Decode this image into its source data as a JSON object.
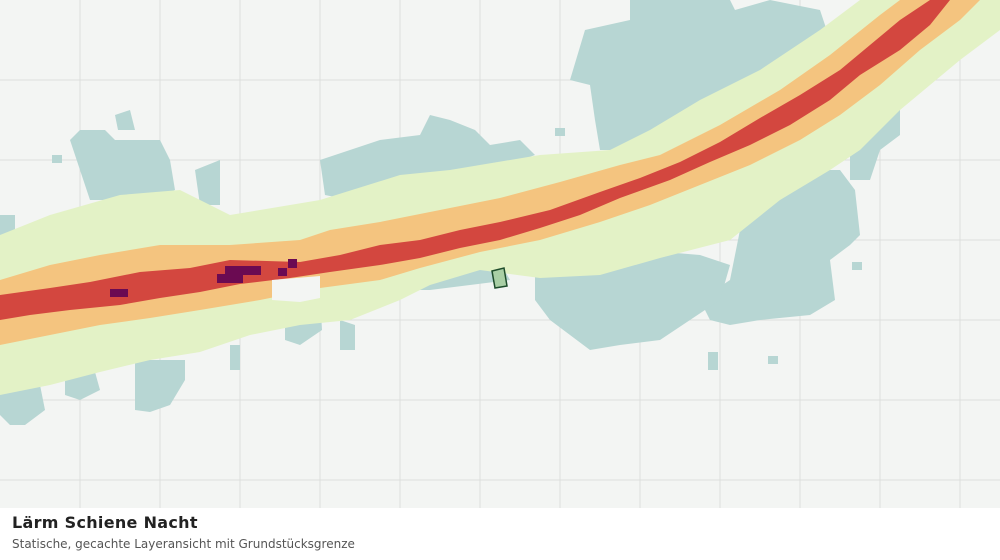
{
  "map": {
    "title": "Lärm Schiene Nacht",
    "subtitle": "Statische, gecachte Layeransicht mit Grundstücksgrenze"
  }
}
